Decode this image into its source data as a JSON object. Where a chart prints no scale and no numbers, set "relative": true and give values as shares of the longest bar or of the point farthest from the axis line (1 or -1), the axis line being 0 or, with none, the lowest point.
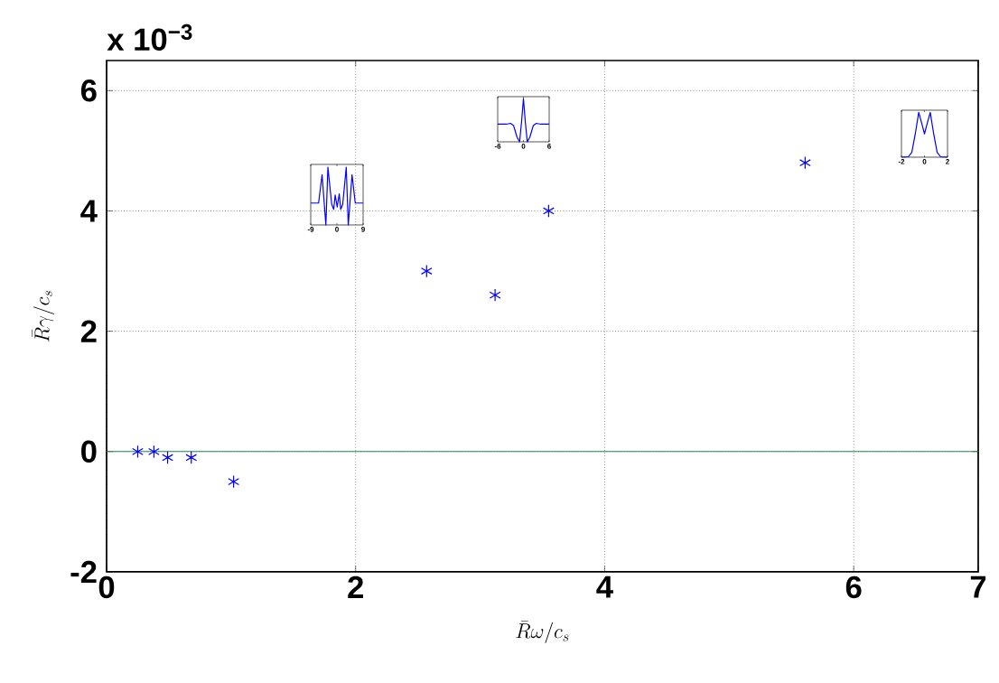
{
  "chart_data": [
    {
      "type": "scatter",
      "xlabel": "\\bar{R}\\omega/c_s",
      "ylabel": "\\bar{R}\\gamma/c_s",
      "annotations": [
        "x 10$^{−3}$"
      ],
      "x": [
        0.25,
        0.38,
        0.49,
        0.68,
        1.02,
        2.57,
        3.12,
        3.55,
        5.61
      ],
      "series": [
        {
          "color": "#0000ff",
          "values": [
            0,
            0,
            -0.1,
            -0.1,
            -0.5,
            3.0,
            2.6,
            4.0,
            4.8
          ]
        }
      ],
      "xlim": [
        0,
        7
      ],
      "ylim": [
        -2,
        6.5
      ],
      "xticks": [
        0,
        2,
        4,
        6,
        7
      ],
      "yticks": [
        -2,
        0,
        2,
        4,
        6
      ],
      "grid": true,
      "marker": "cross",
      "ref_lines": [
        {
          "axis": "y",
          "value": 0,
          "color": "#2e8b57"
        }
      ]
    },
    {
      "type": "line",
      "relative": true,
      "tick_labels": "x",
      "xlim": [
        -9,
        9
      ],
      "xticks": [
        -9,
        0,
        9
      ],
      "x": [
        -9,
        -6.3,
        -5.1,
        -3.8,
        -3.1,
        -1.8,
        -1.1,
        -0.6,
        0.1,
        0.8,
        1.3,
        2.0,
        3.2,
        3.9,
        5.2,
        6.3,
        9
      ],
      "series": [
        {
          "color": "#0000ff",
          "values": [
            0.38,
            0.38,
            0.87,
            0,
            1,
            0.36,
            0.27,
            0.52,
            0.31,
            0.54,
            0.27,
            0.36,
            1,
            0,
            0.87,
            0.38,
            0.38
          ]
        }
      ]
    },
    {
      "type": "line",
      "relative": true,
      "tick_labels": "x",
      "xlim": [
        -6,
        6
      ],
      "xticks": [
        -6,
        0,
        6
      ],
      "x": [
        -6,
        -4,
        -3,
        -2.3,
        -1.5,
        -0.9,
        -0.45,
        0,
        0.45,
        0.9,
        1.5,
        2.3,
        3,
        4,
        6
      ],
      "series": [
        {
          "color": "#0000ff",
          "values": [
            0.41,
            0.41,
            0.43,
            0.38,
            0.11,
            0,
            0.45,
            1,
            0.45,
            0,
            0.11,
            0.38,
            0.43,
            0.41,
            0.41
          ]
        }
      ]
    },
    {
      "type": "line",
      "relative": true,
      "tick_labels": "x",
      "xlim": [
        -2,
        2
      ],
      "xticks": [
        -2,
        0,
        2
      ],
      "x": [
        -2,
        -1.4,
        -1.1,
        -0.8,
        -0.5,
        -0.2,
        0,
        0.2,
        0.5,
        0.8,
        1.1,
        1.4,
        2
      ],
      "series": [
        {
          "color": "#0000ff",
          "values": [
            0,
            0.01,
            0.11,
            0.52,
            1,
            0.72,
            0.52,
            0.72,
            1,
            0.52,
            0.11,
            0.01,
            0
          ]
        }
      ]
    }
  ]
}
